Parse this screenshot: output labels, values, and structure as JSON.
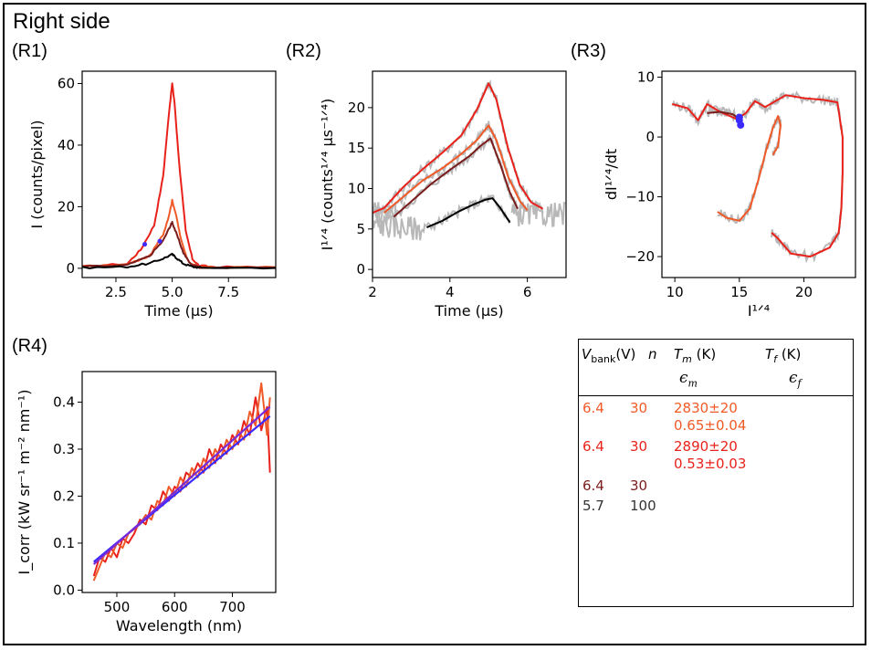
{
  "title": "Right side",
  "colors": {
    "red": "#e8221b",
    "orange": "#f05a28",
    "darkred": "#7a1c1c",
    "black": "#000000",
    "gray": "#b8b8b8",
    "blue": "#3b2bff"
  },
  "chart_data": [
    {
      "id": "R1",
      "label": "(R1)",
      "type": "line",
      "xlabel": "Time (μs)",
      "ylabel": "I (counts/pixel)",
      "xlim": [
        1.0,
        9.6
      ],
      "ylim": [
        -3.0,
        64.0
      ],
      "xticks": [
        "2.5",
        "5.0",
        "7.5"
      ],
      "yticks": [
        "0",
        "20",
        "40",
        "60"
      ],
      "series": [
        {
          "name": "red",
          "x": [
            1.0,
            3.0,
            3.6,
            4.2,
            4.6,
            4.85,
            5.0,
            5.1,
            5.3,
            5.6,
            5.9,
            6.2,
            7.0,
            9.6
          ],
          "y": [
            0.5,
            1.5,
            6.0,
            14.0,
            30.0,
            50.0,
            60.0,
            54.0,
            35.0,
            12.0,
            3.0,
            0.8,
            0.4,
            0.3
          ]
        },
        {
          "name": "orange",
          "x": [
            1.0,
            3.0,
            4.0,
            4.6,
            4.85,
            5.0,
            5.15,
            5.4,
            5.7,
            6.1,
            7.0,
            9.6
          ],
          "y": [
            0.5,
            1.2,
            4.0,
            11.0,
            17.0,
            22.0,
            18.0,
            9.0,
            2.5,
            0.6,
            0.3,
            0.3
          ]
        },
        {
          "name": "darkred",
          "x": [
            1.0,
            3.0,
            4.0,
            4.6,
            4.9,
            5.0,
            5.2,
            5.5,
            5.8,
            6.2,
            9.6
          ],
          "y": [
            0.5,
            1.0,
            4.0,
            9.0,
            13.5,
            15.0,
            11.0,
            5.0,
            1.5,
            0.4,
            0.3
          ]
        },
        {
          "name": "black",
          "x": [
            1.0,
            3.0,
            4.0,
            4.6,
            5.0,
            5.2,
            5.5,
            5.9,
            6.3,
            9.6
          ],
          "y": [
            0.2,
            0.5,
            1.6,
            3.2,
            4.5,
            3.3,
            1.5,
            0.5,
            0.2,
            0.2
          ]
        }
      ],
      "markers": [
        {
          "x": 3.78,
          "y": 7.8
        },
        {
          "x": 4.45,
          "y": 8.8
        }
      ]
    },
    {
      "id": "R2",
      "label": "(R2)",
      "type": "line",
      "xlabel": "Time (μs)",
      "ylabel": "I¹ᐟ⁴ (counts¹ᐟ⁴ μs⁻¹ᐟ⁴)",
      "xlim": [
        2.0,
        7.0
      ],
      "ylim": [
        -1.0,
        24.5
      ],
      "xticks": [
        "2",
        "4",
        "6"
      ],
      "yticks": [
        "0",
        "5",
        "10",
        "15",
        "20"
      ],
      "series": [
        {
          "name": "red",
          "x": [
            2.0,
            2.3,
            2.8,
            3.3,
            3.8,
            4.3,
            4.7,
            5.0,
            5.2,
            5.5,
            5.8,
            6.1,
            6.4
          ],
          "y": [
            7.0,
            7.6,
            10.2,
            12.4,
            14.4,
            16.6,
            19.8,
            23.0,
            21.0,
            15.0,
            10.5,
            8.3,
            7.5
          ]
        },
        {
          "name": "orange",
          "x": [
            2.3,
            2.8,
            3.3,
            3.8,
            4.3,
            4.7,
            5.0,
            5.2,
            5.5,
            5.8,
            6.0
          ],
          "y": [
            7.0,
            9.0,
            11.0,
            12.5,
            14.3,
            16.0,
            17.8,
            16.0,
            11.5,
            8.5,
            7.3
          ]
        },
        {
          "name": "darkred",
          "x": [
            2.55,
            3.0,
            3.5,
            4.0,
            4.5,
            4.8,
            5.05,
            5.3,
            5.55,
            5.75
          ],
          "y": [
            6.5,
            8.4,
            10.5,
            12.3,
            14.0,
            15.3,
            16.2,
            13.0,
            9.5,
            7.5
          ]
        },
        {
          "name": "black",
          "x": [
            3.4,
            3.8,
            4.2,
            4.6,
            4.9,
            5.1,
            5.3,
            5.55
          ],
          "y": [
            5.2,
            6.0,
            7.1,
            8.0,
            8.6,
            8.8,
            7.6,
            5.8
          ]
        }
      ]
    },
    {
      "id": "R3",
      "label": "(R3)",
      "type": "line",
      "xlabel": "I¹ᐟ⁴",
      "ylabel": "dI¹ᐟ⁴/dt",
      "xlim": [
        9.0,
        24.0
      ],
      "ylim": [
        -23.5,
        11.0
      ],
      "xticks": [
        "10",
        "15",
        "20"
      ],
      "yticks": [
        "10",
        "0",
        "−10",
        "−20"
      ],
      "series": [
        {
          "name": "red",
          "x": [
            9.8,
            11.0,
            11.8,
            12.5,
            13.5,
            14.8,
            15.5,
            16.2,
            17.0,
            17.8,
            18.6,
            20.0,
            21.5,
            22.6,
            23.0,
            23.0,
            22.9,
            22.7,
            22.0,
            20.5,
            19.0,
            18.0,
            17.5
          ],
          "y": [
            5.5,
            4.8,
            2.8,
            5.5,
            4.2,
            3.0,
            4.0,
            6.0,
            5.0,
            6.0,
            7.0,
            6.5,
            6.2,
            5.8,
            0.0,
            -6.0,
            -12.0,
            -16.0,
            -18.5,
            -20.0,
            -19.5,
            -17.0,
            -16.0
          ]
        },
        {
          "name": "orange",
          "x": [
            13.3,
            14.0,
            15.0,
            15.8,
            16.5,
            17.1,
            17.6,
            18.0,
            18.2,
            18.0,
            17.6
          ],
          "y": [
            -12.5,
            -13.5,
            -14.0,
            -12.0,
            -7.0,
            -2.0,
            1.5,
            3.5,
            2.0,
            -1.5,
            -3.0
          ]
        },
        {
          "name": "darkred",
          "x": [
            12.5,
            13.5,
            14.5,
            15.0
          ],
          "y": [
            4.0,
            4.2,
            3.8,
            3.0
          ]
        }
      ],
      "markers": [
        {
          "x": 15.0,
          "y": 3.3
        },
        {
          "x": 15.1,
          "y": 2.0
        },
        {
          "x": 15.0,
          "y": 2.8
        }
      ]
    },
    {
      "id": "R4",
      "label": "(R4)",
      "type": "line",
      "xlabel": "Wavelength (nm)",
      "ylabel": "I_corr (kW sr⁻¹ m⁻² nm⁻¹)",
      "xlim": [
        440,
        775
      ],
      "ylim": [
        -0.005,
        0.465
      ],
      "xticks": [
        "500",
        "600",
        "700"
      ],
      "yticks": [
        "0.0",
        "0.1",
        "0.2",
        "0.3",
        "0.4"
      ],
      "series": [
        {
          "name": "red-spectrum",
          "x": [
            460,
            470,
            480,
            490,
            500,
            510,
            520,
            530,
            540,
            550,
            560,
            570,
            580,
            590,
            600,
            610,
            620,
            630,
            640,
            650,
            660,
            670,
            680,
            690,
            700,
            710,
            720,
            730,
            740,
            750,
            760,
            765
          ],
          "y": [
            0.03,
            0.07,
            0.06,
            0.09,
            0.07,
            0.11,
            0.1,
            0.12,
            0.15,
            0.14,
            0.18,
            0.17,
            0.21,
            0.19,
            0.22,
            0.21,
            0.25,
            0.24,
            0.27,
            0.25,
            0.3,
            0.27,
            0.31,
            0.29,
            0.33,
            0.31,
            0.36,
            0.33,
            0.41,
            0.34,
            0.39,
            0.25
          ]
        },
        {
          "name": "orange-spectrum",
          "x": [
            460,
            470,
            480,
            490,
            500,
            510,
            520,
            530,
            540,
            550,
            560,
            570,
            580,
            590,
            600,
            610,
            620,
            630,
            640,
            650,
            660,
            670,
            680,
            690,
            700,
            710,
            720,
            730,
            740,
            750,
            760,
            765
          ],
          "y": [
            0.02,
            0.05,
            0.08,
            0.07,
            0.1,
            0.09,
            0.12,
            0.13,
            0.14,
            0.16,
            0.15,
            0.19,
            0.18,
            0.22,
            0.2,
            0.24,
            0.22,
            0.26,
            0.24,
            0.28,
            0.26,
            0.3,
            0.28,
            0.32,
            0.3,
            0.34,
            0.32,
            0.38,
            0.35,
            0.44,
            0.33,
            0.41
          ]
        },
        {
          "name": "fit-1",
          "x": [
            460,
            765
          ],
          "y": [
            0.06,
            0.37
          ]
        },
        {
          "name": "fit-2",
          "x": [
            460,
            765
          ],
          "y": [
            0.055,
            0.39
          ]
        }
      ]
    }
  ],
  "table": {
    "headers": {
      "vbank_sym": "V",
      "vbank_sub": "bank",
      "vbank_unit": "(V)",
      "n": "n",
      "tm_sym": "T",
      "tm_sub": "m",
      "tm_unit": " (K)",
      "tf_sym": "T",
      "tf_sub": "f",
      "tf_unit": " (K)",
      "em_sym": "ϵ",
      "em_sub": "m",
      "ef_sym": "ϵ",
      "ef_sub": "f"
    },
    "rows": [
      {
        "v": "6.4",
        "n": "30",
        "tm": "2830±20",
        "em": "0.65±0.04",
        "color": "#f05a28"
      },
      {
        "v": "6.4",
        "n": "30",
        "tm": "2890±20",
        "em": "0.53±0.03",
        "color": "#e8221b"
      },
      {
        "v": "6.4",
        "n": "30",
        "tm": "",
        "em": "",
        "color": "#7a1c1c"
      },
      {
        "v": "5.7",
        "n": "100",
        "tm": "",
        "em": "",
        "color": "#333333"
      }
    ]
  }
}
